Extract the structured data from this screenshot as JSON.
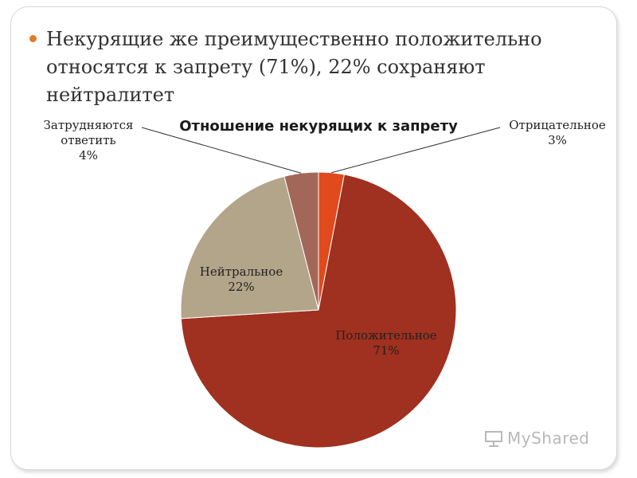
{
  "slide": {
    "bullet": "Некурящие же преимущественно положительно относятся к запрету (71%), 22% сохраняют нейтралитет"
  },
  "chart_data": {
    "type": "pie",
    "title": "Отношение некурящих к запрету",
    "slices": [
      {
        "label": "Отрицательное",
        "value": 3,
        "value_label": "3%",
        "color": "#e04a1c"
      },
      {
        "label": "Положительное",
        "value": 71,
        "value_label": "71%",
        "color": "#a0301f"
      },
      {
        "label": "Нейтральное",
        "value": 22,
        "value_label": "22%",
        "color": "#b3a58a"
      },
      {
        "label": "Затрудняются ответить",
        "value": 4,
        "value_label": "4%",
        "color": "#a3675a"
      }
    ]
  },
  "labels": {
    "negative": [
      "Отрицательное",
      "3%"
    ],
    "positive": [
      "Положительное",
      "71%"
    ],
    "neutral": [
      "Нейтральное",
      "22%"
    ],
    "hard": [
      "Затрудняются",
      "ответить",
      "4%"
    ]
  },
  "watermark": {
    "text": "MyShared",
    "icon": "presentation-board-icon"
  }
}
